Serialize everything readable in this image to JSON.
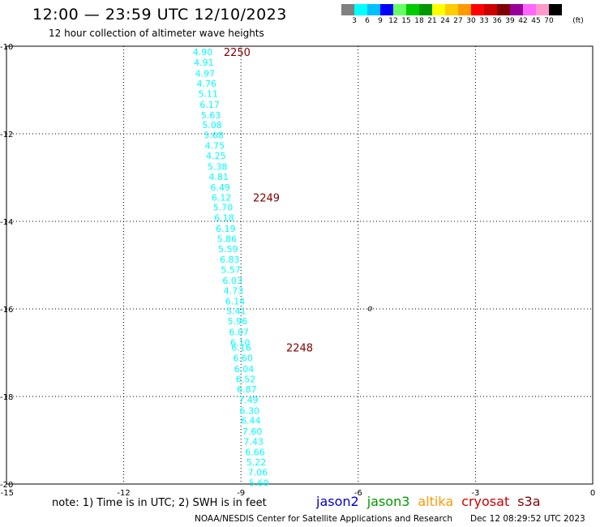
{
  "header": {
    "title": "12:00 — 23:59 UTC 12/10/2023",
    "subtitle": "12 hour collection of altimeter wave heights"
  },
  "legend": {
    "colors": [
      "#808080",
      "#00ffff",
      "#00c0ff",
      "#0000ff",
      "#66ff66",
      "#00cc00",
      "#009900",
      "#ffff00",
      "#ffcc00",
      "#ff9900",
      "#ff0000",
      "#cc0000",
      "#800000",
      "#990099",
      "#ff66ff",
      "#ff99cc",
      "#000000"
    ],
    "labels": [
      "3",
      "6",
      "9",
      "12",
      "15",
      "18",
      "21",
      "24",
      "27",
      "30",
      "33",
      "36",
      "39",
      "42",
      "45",
      "70"
    ],
    "unit": "(ft)"
  },
  "map": {
    "lon_range": [
      -15,
      0
    ],
    "lat_range": [
      -20,
      -10
    ],
    "tick_labels_x": [
      {
        "lon": -15,
        "label": "-15"
      },
      {
        "lon": -12,
        "label": "-12"
      },
      {
        "lon": -9,
        "label": "-9"
      },
      {
        "lon": -6,
        "label": "-6"
      },
      {
        "lon": -3,
        "label": "-3"
      },
      {
        "lon": 0,
        "label": "0"
      }
    ],
    "tick_labels_y": [
      {
        "lat": -10,
        "label": "-10"
      },
      {
        "lat": -12,
        "label": "-12"
      },
      {
        "lat": -14,
        "label": "-14"
      },
      {
        "lat": -16,
        "label": "-16"
      },
      {
        "lat": -18,
        "label": "-18"
      },
      {
        "lat": -20,
        "label": "-20"
      }
    ],
    "grid": "dotted",
    "track_color": "#00ffff",
    "time_marker_color": "#800000",
    "island_label": "o",
    "island": {
      "lon": -5.7,
      "lat": -15.97
    },
    "track": [
      {
        "lon": -9.98,
        "lat": -10.13,
        "swh": "4.90"
      },
      {
        "lon": -9.95,
        "lat": -10.37,
        "swh": "4.91"
      },
      {
        "lon": -9.92,
        "lat": -10.62,
        "swh": "4.97"
      },
      {
        "lon": -9.88,
        "lat": -10.85,
        "swh": "4.76"
      },
      {
        "lon": -9.84,
        "lat": -11.08,
        "swh": "5.11"
      },
      {
        "lon": -9.8,
        "lat": -11.33,
        "swh": "6.17"
      },
      {
        "lon": -9.77,
        "lat": -11.57,
        "swh": "5.63"
      },
      {
        "lon": -9.74,
        "lat": -11.8,
        "swh": "5.08"
      },
      {
        "lon": -9.7,
        "lat": -12.03,
        "swh": "5.68"
      },
      {
        "lon": -9.67,
        "lat": -12.27,
        "swh": "4.75"
      },
      {
        "lon": -9.64,
        "lat": -12.5,
        "swh": "4.25"
      },
      {
        "lon": -9.6,
        "lat": -12.75,
        "swh": "5.38"
      },
      {
        "lon": -9.57,
        "lat": -12.98,
        "swh": "4.81"
      },
      {
        "lon": -9.53,
        "lat": -13.22,
        "swh": "6.49"
      },
      {
        "lon": -9.5,
        "lat": -13.45,
        "swh": "6.12"
      },
      {
        "lon": -9.46,
        "lat": -13.68,
        "swh": "5.70"
      },
      {
        "lon": -9.43,
        "lat": -13.92,
        "swh": "6.18"
      },
      {
        "lon": -9.39,
        "lat": -14.17,
        "swh": "6.19"
      },
      {
        "lon": -9.36,
        "lat": -14.4,
        "swh": "5.86"
      },
      {
        "lon": -9.33,
        "lat": -14.63,
        "swh": "5.59"
      },
      {
        "lon": -9.29,
        "lat": -14.87,
        "swh": "6.83"
      },
      {
        "lon": -9.26,
        "lat": -15.1,
        "swh": "5.57"
      },
      {
        "lon": -9.22,
        "lat": -15.35,
        "swh": "6.03"
      },
      {
        "lon": -9.19,
        "lat": -15.58,
        "swh": "4.73"
      },
      {
        "lon": -9.15,
        "lat": -15.82,
        "swh": "6.14"
      },
      {
        "lon": -9.12,
        "lat": -16.05,
        "swh": "5.41"
      },
      {
        "lon": -9.09,
        "lat": -16.28,
        "swh": "5.96"
      },
      {
        "lon": -9.05,
        "lat": -16.53,
        "swh": "6.07"
      },
      {
        "lon": -9.02,
        "lat": -16.77,
        "swh": "6.10"
      },
      {
        "lon": -8.99,
        "lat": -16.88,
        "swh": "6.16"
      },
      {
        "lon": -8.95,
        "lat": -17.12,
        "swh": "6.60"
      },
      {
        "lon": -8.92,
        "lat": -17.37,
        "swh": "6.04"
      },
      {
        "lon": -8.88,
        "lat": -17.6,
        "swh": "6.52"
      },
      {
        "lon": -8.85,
        "lat": -17.83,
        "swh": "6.87"
      },
      {
        "lon": -8.81,
        "lat": -18.07,
        "swh": "7.49"
      },
      {
        "lon": -8.78,
        "lat": -18.32,
        "swh": "6.30"
      },
      {
        "lon": -8.75,
        "lat": -18.55,
        "swh": "6.44"
      },
      {
        "lon": -8.71,
        "lat": -18.8,
        "swh": "7.60"
      },
      {
        "lon": -8.68,
        "lat": -19.03,
        "swh": "7.43"
      },
      {
        "lon": -8.64,
        "lat": -19.27,
        "swh": "6.66"
      },
      {
        "lon": -8.61,
        "lat": -19.5,
        "swh": "5.22"
      },
      {
        "lon": -8.57,
        "lat": -19.73,
        "swh": "7.06"
      },
      {
        "lon": -8.54,
        "lat": -19.97,
        "swh": "5.60"
      }
    ],
    "time_markers": [
      {
        "lon": -9.1,
        "lat": -10.13,
        "label": "2250"
      },
      {
        "lon": -8.35,
        "lat": -13.45,
        "label": "2249"
      },
      {
        "lon": -7.5,
        "lat": -16.88,
        "label": "2248"
      }
    ]
  },
  "footer": {
    "note": "note:  1) Time is in UTC;  2) SWH is in feet",
    "satellites": [
      {
        "name": "jason2",
        "color": "#0000cc"
      },
      {
        "name": "jason3",
        "color": "#009900"
      },
      {
        "name": "altika",
        "color": "#ff9900"
      },
      {
        "name": "cryosat",
        "color": "#cc0000"
      },
      {
        "name": "s3a",
        "color": "#800000"
      }
    ],
    "credit": "NOAA/NESDIS Center for Satellite Applications and Research",
    "timestamp": "Dec 12 08:29:52 UTC 2023"
  }
}
